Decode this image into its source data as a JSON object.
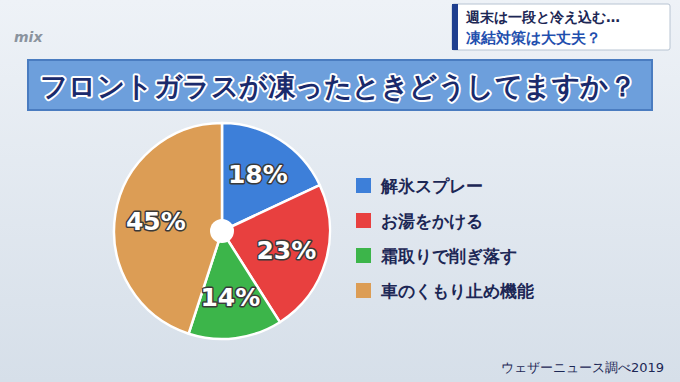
{
  "chart_data": {
    "type": "pie",
    "title": "フロントガラスが凍ったときどうしてますか？",
    "categories": [
      "解氷スプレー",
      "お湯をかける",
      "霜取りで削ぎ落す",
      "車のくもり止め機能"
    ],
    "values": [
      18,
      23,
      14,
      45
    ],
    "value_labels": [
      "18%",
      "23%",
      "14%",
      "45%"
    ],
    "colors": [
      "#3d7fd9",
      "#e8403f",
      "#3cb54a",
      "#dc9d55"
    ],
    "data_labels": true,
    "legend": "right",
    "annotations": [
      "mix",
      "週末は一段と冷え込む…",
      "凍結対策は大丈夫？",
      "ウェザーニュース調べ2019"
    ]
  }
}
